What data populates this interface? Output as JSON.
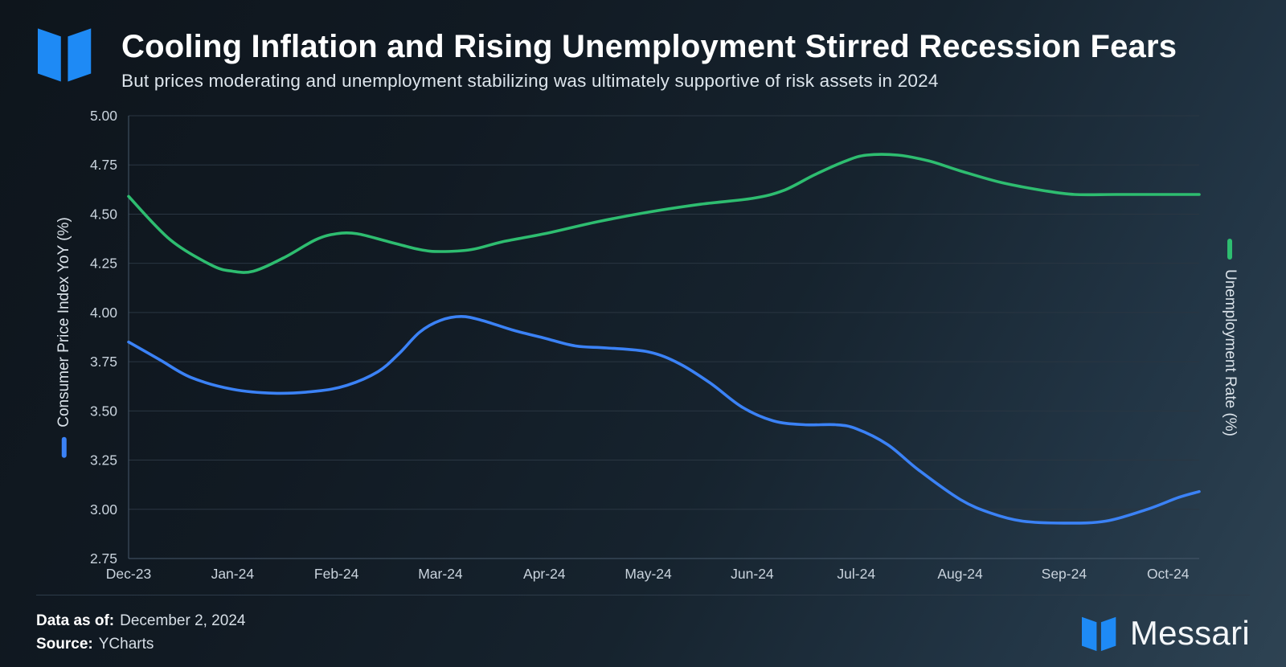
{
  "header": {
    "title": "Cooling Inflation and Rising Unemployment Stirred Recession Fears",
    "subtitle": "But prices moderating and unemployment stabilizing was ultimately supportive of risk assets in 2024"
  },
  "axes": {
    "left_label": "Consumer Price Index YoY (%)",
    "right_label": "Unemployment Rate (%)"
  },
  "footer": {
    "data_as_of_label": "Data as of:",
    "data_as_of_value": "December 2, 2024",
    "source_label": "Source:",
    "source_value": "YCharts",
    "brand": "Messari"
  },
  "colors": {
    "cpi_blue": "#3b82f6",
    "unemployment_green": "#2ebd70",
    "logo_blue": "#1e8af5",
    "grid": "#2a3642",
    "axis": "#46586a",
    "tick_text": "#c9d3dd"
  },
  "chart_data": {
    "type": "line",
    "title": "Cooling Inflation and Rising Unemployment Stirred Recession Fears",
    "xlabel": "",
    "ylabel_left": "Consumer Price Index YoY (%)",
    "ylabel_right": "Unemployment Rate (%)",
    "grid": true,
    "legend_position": "rotated side labels",
    "xlim": [
      0,
      10.3
    ],
    "ylim": [
      2.75,
      5.0
    ],
    "x_tick_labels": [
      "Dec-23",
      "Jan-24",
      "Feb-24",
      "Mar-24",
      "Apr-24",
      "May-24",
      "Jun-24",
      "Jul-24",
      "Aug-24",
      "Sep-24",
      "Oct-24"
    ],
    "y_ticks": [
      "5.00",
      "4.75",
      "4.50",
      "4.25",
      "4.00",
      "3.75",
      "3.50",
      "3.25",
      "3.00",
      "2.75"
    ],
    "series": [
      {
        "id": "unemployment-rate",
        "name": "Unemployment Rate (%)",
        "color": "#2ebd70",
        "points": [
          [
            0,
            4.59
          ],
          [
            0.4,
            4.37
          ],
          [
            0.8,
            4.24
          ],
          [
            1.0,
            4.21
          ],
          [
            1.2,
            4.21
          ],
          [
            1.5,
            4.28
          ],
          [
            1.8,
            4.37
          ],
          [
            2.0,
            4.4
          ],
          [
            2.2,
            4.4
          ],
          [
            2.5,
            4.36
          ],
          [
            2.8,
            4.32
          ],
          [
            3.0,
            4.31
          ],
          [
            3.3,
            4.32
          ],
          [
            3.6,
            4.36
          ],
          [
            4.0,
            4.4
          ],
          [
            4.5,
            4.46
          ],
          [
            5.0,
            4.51
          ],
          [
            5.5,
            4.55
          ],
          [
            6.0,
            4.58
          ],
          [
            6.3,
            4.62
          ],
          [
            6.6,
            4.7
          ],
          [
            6.9,
            4.77
          ],
          [
            7.1,
            4.8
          ],
          [
            7.4,
            4.8
          ],
          [
            7.7,
            4.77
          ],
          [
            8.0,
            4.72
          ],
          [
            8.4,
            4.66
          ],
          [
            8.8,
            4.62
          ],
          [
            9.1,
            4.6
          ],
          [
            9.5,
            4.6
          ],
          [
            10.0,
            4.6
          ],
          [
            10.3,
            4.6
          ]
        ]
      },
      {
        "id": "cpi-yoy",
        "name": "Consumer Price Index YoY (%)",
        "color": "#3b82f6",
        "points": [
          [
            0,
            3.85
          ],
          [
            0.3,
            3.76
          ],
          [
            0.6,
            3.67
          ],
          [
            1.0,
            3.61
          ],
          [
            1.4,
            3.59
          ],
          [
            1.8,
            3.6
          ],
          [
            2.1,
            3.63
          ],
          [
            2.4,
            3.7
          ],
          [
            2.6,
            3.79
          ],
          [
            2.8,
            3.9
          ],
          [
            3.0,
            3.96
          ],
          [
            3.2,
            3.98
          ],
          [
            3.4,
            3.96
          ],
          [
            3.7,
            3.91
          ],
          [
            4.0,
            3.87
          ],
          [
            4.3,
            3.83
          ],
          [
            4.6,
            3.82
          ],
          [
            5.0,
            3.8
          ],
          [
            5.3,
            3.74
          ],
          [
            5.6,
            3.64
          ],
          [
            5.9,
            3.52
          ],
          [
            6.2,
            3.45
          ],
          [
            6.5,
            3.43
          ],
          [
            6.8,
            3.43
          ],
          [
            7.0,
            3.41
          ],
          [
            7.3,
            3.33
          ],
          [
            7.6,
            3.2
          ],
          [
            8.0,
            3.05
          ],
          [
            8.3,
            2.98
          ],
          [
            8.6,
            2.94
          ],
          [
            9.0,
            2.93
          ],
          [
            9.4,
            2.94
          ],
          [
            9.8,
            3.0
          ],
          [
            10.1,
            3.06
          ],
          [
            10.3,
            3.09
          ]
        ]
      }
    ]
  }
}
